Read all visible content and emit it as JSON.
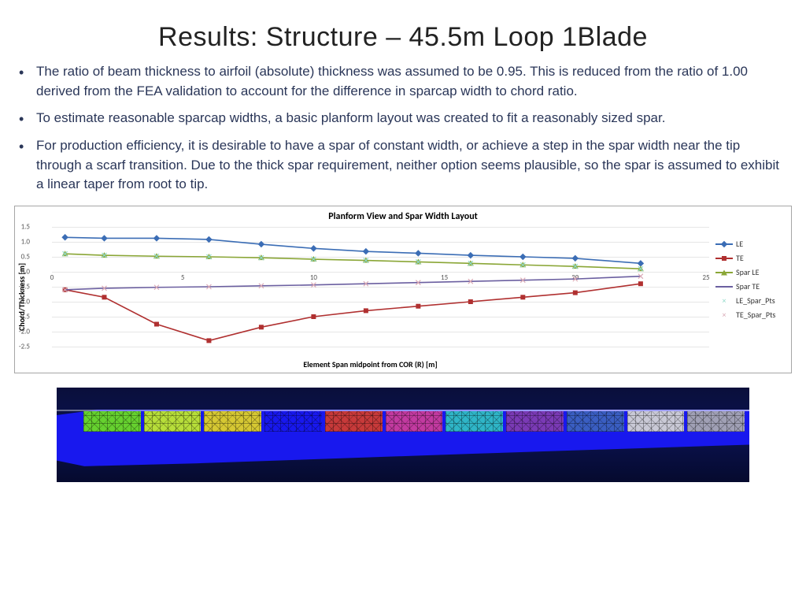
{
  "title": "Results: Structure – 45.5m Loop 1Blade",
  "bullets": [
    "The ratio of beam thickness to airfoil (absolute) thickness was assumed to be 0.95.  This is reduced from the ratio of 1.00 derived from the FEA validation to account for the difference in sparcap width to chord ratio.",
    "To estimate reasonable sparcap widths, a basic planform layout was created to fit a reasonably sized spar.",
    "For production efficiency, it is desirable to have a spar of constant width, or achieve a step in the spar width near the tip through a scarf transition.  Due to the thick spar requirement, neither option seems plausible, so the spar is assumed to exhibit a linear taper from root to tip."
  ],
  "chart": {
    "title": "Planform View and Spar Width Layout",
    "ylabel": "Chord/Thickness [m]",
    "xlabel": "Element Span midpoint from COR (R) [m]",
    "xlim": [
      0,
      25
    ],
    "ylim": [
      -2.5,
      1.5
    ],
    "ytick_step": 0.5,
    "xtick_step": 5,
    "grid_color": "#e6e6e6",
    "series": {
      "LE": {
        "color": "#3b6db5",
        "marker": "diamond",
        "x": [
          0.5,
          2,
          4,
          6,
          8,
          10,
          12,
          14,
          16,
          18,
          20,
          22.5
        ],
        "y": [
          1.15,
          1.12,
          1.12,
          1.08,
          0.92,
          0.78,
          0.68,
          0.62,
          0.55,
          0.5,
          0.45,
          0.28
        ]
      },
      "TE": {
        "color": "#b03030",
        "marker": "square",
        "x": [
          0.5,
          2,
          4,
          6,
          8,
          10,
          12,
          14,
          16,
          18,
          20,
          22.5
        ],
        "y": [
          -0.6,
          -0.85,
          -1.75,
          -2.3,
          -1.85,
          -1.5,
          -1.3,
          -1.15,
          -1.0,
          -0.85,
          -0.7,
          -0.4
        ]
      },
      "Spar LE": {
        "color": "#8aa636",
        "marker": "triangle",
        "x": [
          0.5,
          2,
          4,
          6,
          8,
          10,
          12,
          14,
          16,
          18,
          20,
          22.5
        ],
        "y": [
          0.6,
          0.55,
          0.52,
          0.5,
          0.47,
          0.42,
          0.38,
          0.33,
          0.28,
          0.23,
          0.18,
          0.1
        ]
      },
      "Spar TE": {
        "color": "#6b5fa0",
        "marker": "none",
        "x": [
          0.5,
          2,
          4,
          6,
          8,
          10,
          12,
          14,
          16,
          18,
          20,
          22.5
        ],
        "y": [
          -0.6,
          -0.55,
          -0.52,
          -0.5,
          -0.47,
          -0.44,
          -0.4,
          -0.36,
          -0.32,
          -0.28,
          -0.24,
          -0.15
        ]
      },
      "LE_Spar_Pts": {
        "color": "#8fd9c9",
        "marker": "x",
        "x": [
          0.5,
          2,
          4,
          6,
          8,
          10,
          12,
          14,
          16,
          18,
          20,
          22.5
        ],
        "y": [
          0.6,
          0.55,
          0.52,
          0.5,
          0.47,
          0.42,
          0.38,
          0.33,
          0.28,
          0.23,
          0.18,
          0.1
        ]
      },
      "TE_Spar_Pts": {
        "color": "#d9a8b5",
        "marker": "x",
        "x": [
          0.5,
          2,
          4,
          6,
          8,
          10,
          12,
          14,
          16,
          18,
          20,
          22.5
        ],
        "y": [
          -0.6,
          -0.55,
          -0.52,
          -0.5,
          -0.47,
          -0.44,
          -0.4,
          -0.36,
          -0.32,
          -0.28,
          -0.24,
          -0.15
        ]
      }
    },
    "legend_order": [
      "LE",
      "TE",
      "Spar LE",
      "Spar TE",
      "LE_Spar_Pts",
      "TE_Spar_Pts"
    ]
  },
  "render": {
    "bg_top": "#0a0f3b",
    "bg_bot": "#050a2e",
    "blade_color": "#1818ee",
    "segments": [
      "#66d12f",
      "#b7de3a",
      "#d6c833",
      "#1818ee",
      "#c73a3a",
      "#c23aa0",
      "#2fb5c7",
      "#7a3ab5",
      "#3a5ec2",
      "#c9c9d6",
      "#a0a0b5"
    ]
  }
}
